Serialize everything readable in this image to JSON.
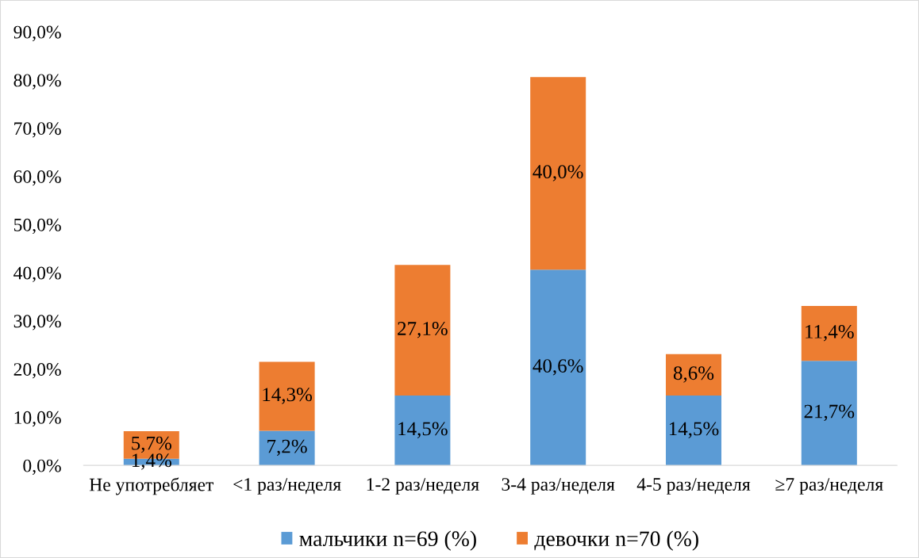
{
  "chart_data": {
    "type": "bar",
    "stacked": true,
    "categories": [
      "Не употребляет",
      "<1 раз/неделя",
      "1-2 раз/неделя",
      "3-4 раз/неделя",
      "4-5 раз/неделя",
      "≥7 раз/неделя"
    ],
    "series": [
      {
        "name": "мальчики n=69 (%)",
        "color": "#5b9bd5",
        "values": [
          1.4,
          7.2,
          14.5,
          40.6,
          14.5,
          21.7
        ],
        "value_labels": [
          "1,4%",
          "7,2%",
          "14,5%",
          "40,6%",
          "14,5%",
          "21,7%"
        ]
      },
      {
        "name": "девочки n=70 (%)",
        "color": "#ed7d31",
        "values": [
          5.7,
          14.3,
          27.1,
          40.0,
          8.6,
          11.4
        ],
        "value_labels": [
          "5,7%",
          "14,3%",
          "27,1%",
          "40,0%",
          "8,6%",
          "11,4%"
        ]
      }
    ],
    "ylim": [
      0,
      90
    ],
    "yticks": [
      {
        "value": 0,
        "label": "0,0%"
      },
      {
        "value": 10,
        "label": "10,0%"
      },
      {
        "value": 20,
        "label": "20,0%"
      },
      {
        "value": 30,
        "label": "30,0%"
      },
      {
        "value": 40,
        "label": "40,0%"
      },
      {
        "value": 50,
        "label": "50,0%"
      },
      {
        "value": 60,
        "label": "60,0%"
      },
      {
        "value": 70,
        "label": "70,0%"
      },
      {
        "value": 80,
        "label": "80,0%"
      },
      {
        "value": 90,
        "label": "90,0%"
      }
    ],
    "grid": false,
    "legend": "bottom"
  }
}
